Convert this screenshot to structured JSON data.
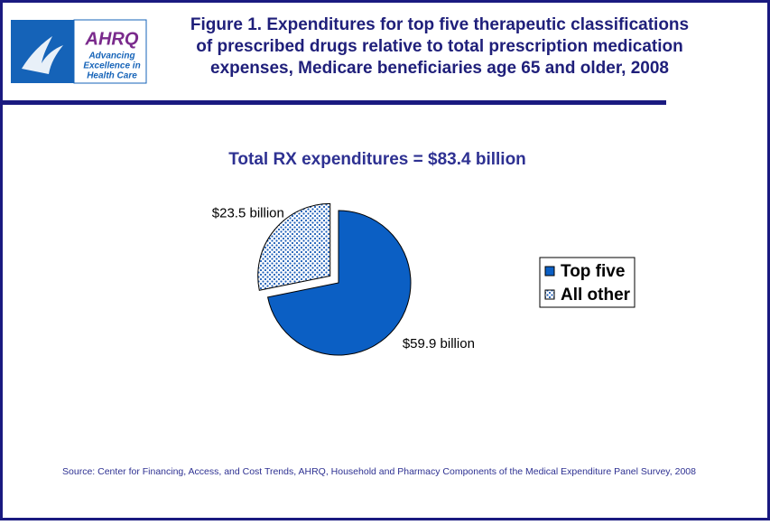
{
  "logo": {
    "name": "AHRQ",
    "tagline": [
      "Advancing",
      "Excellence in",
      "Health Care"
    ]
  },
  "chart_data": {
    "type": "pie",
    "title": [
      "Figure 1. Expenditures for top five therapeutic classifications",
      "of prescribed drugs relative to total prescription medication",
      "expenses, Medicare beneficiaries age 65 and older, 2008"
    ],
    "subtitle": "Total RX expenditures = $83.4 billion",
    "categories": [
      "Top five",
      "All other"
    ],
    "values": [
      59.9,
      23.5
    ],
    "value_labels": [
      "$59.9 billion",
      "$23.5 billion"
    ],
    "colors": [
      "#0B5FC4",
      "#1E5FB8"
    ],
    "patterns": [
      null,
      "dots"
    ],
    "exploded": [
      false,
      true
    ],
    "legend": "right",
    "source": "Source: Center for Financing, Access, and Cost Trends, AHRQ, Household and Pharmacy Components of the Medical Expenditure Panel Survey, 2008"
  }
}
